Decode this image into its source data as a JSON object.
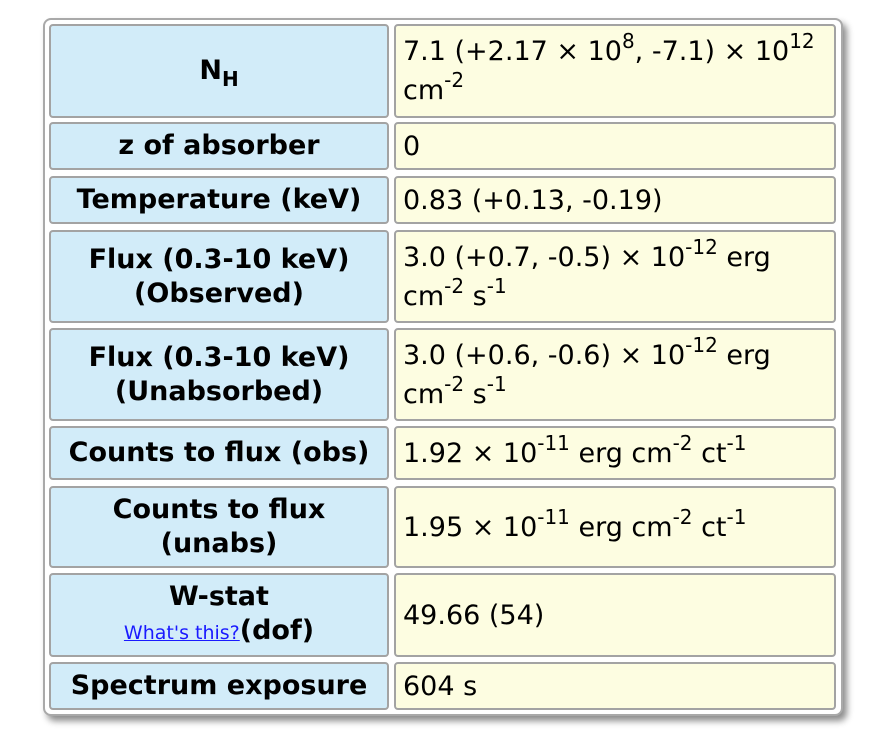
{
  "rows": [
    {
      "label": "N",
      "label_sub": "H",
      "value_parts": [
        "7.1 (+2.17 × 10",
        "8",
        ", -7.1) × 10",
        "12",
        " cm",
        "-2"
      ]
    },
    {
      "label": "z of absorber",
      "value": "0"
    },
    {
      "label": "Temperature (keV)",
      "value": "0.83 (+0.13, -0.19)"
    },
    {
      "label_line1": "Flux (0.3-10 keV)",
      "label_line2": "(Observed)",
      "value_parts": [
        "3.0 (+0.7, -0.5) × 10",
        "-12",
        " erg cm",
        "-2",
        " s",
        "-1"
      ]
    },
    {
      "label_line1": "Flux (0.3-10 keV)",
      "label_line2": "(Unabsorbed)",
      "value_parts": [
        "3.0 (+0.6, -0.6) × 10",
        "-12",
        " erg cm",
        "-2",
        " s",
        "-1"
      ]
    },
    {
      "label": "Counts to flux (obs)",
      "value_parts": [
        "1.92 × 10",
        "-11",
        " erg cm",
        "-2",
        " ct",
        "-1"
      ]
    },
    {
      "label_line1": "Counts to flux",
      "label_line2": "(unabs)",
      "value_parts": [
        "1.95 × 10",
        "-11",
        " erg cm",
        "-2",
        " ct",
        "-1"
      ]
    },
    {
      "label_line1": "W-stat",
      "link_text": "What's this?",
      "label_line2": "(dof)",
      "value": "49.66 (54)"
    },
    {
      "label": "Spectrum exposure",
      "value": "604 s"
    }
  ]
}
